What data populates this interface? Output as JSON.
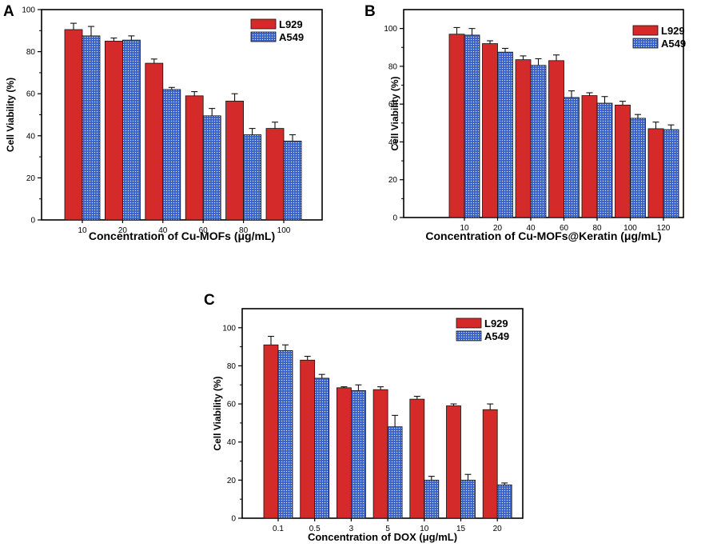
{
  "colors": {
    "l929": "#d42a2a",
    "a549": "#3a63c9",
    "a549_dot": "#e8eefc",
    "axis": "#000000",
    "background": "#ffffff"
  },
  "chart_data": [
    {
      "panel": "A",
      "type": "bar",
      "title": "",
      "xlabel": "Concentration of Cu-MOFs (μg/mL)",
      "ylabel": "Cell Viability (%)",
      "ylim": [
        0,
        100
      ],
      "yticks": [
        "0",
        "20",
        "40",
        "60",
        "80",
        "100"
      ],
      "categories": [
        "10",
        "20",
        "40",
        "60",
        "80",
        "100"
      ],
      "legend": {
        "position": "top-right",
        "entries": [
          "L929",
          "A549"
        ]
      },
      "series": [
        {
          "name": "L929",
          "values": [
            90.5,
            85.0,
            74.5,
            59.0,
            56.5,
            43.5
          ],
          "errors": [
            3.0,
            1.5,
            2.0,
            2.0,
            3.5,
            3.0
          ]
        },
        {
          "name": "A549",
          "values": [
            87.5,
            85.5,
            62.0,
            49.5,
            40.5,
            37.5
          ],
          "errors": [
            4.5,
            2.0,
            1.0,
            3.5,
            3.0,
            3.0
          ]
        }
      ]
    },
    {
      "panel": "B",
      "type": "bar",
      "title": "",
      "xlabel": "Concentration of Cu-MOFs@Keratin (μg/mL)",
      "ylabel": "Cell Viability (%)",
      "ylim": [
        0,
        110
      ],
      "yticks": [
        "0",
        "20",
        "40",
        "60",
        "80",
        "100"
      ],
      "categories": [
        "10",
        "20",
        "40",
        "60",
        "80",
        "100",
        "120"
      ],
      "legend": {
        "position": "top-right",
        "entries": [
          "L929",
          "A549"
        ]
      },
      "series": [
        {
          "name": "L929",
          "values": [
            97.0,
            92.0,
            83.5,
            83.0,
            64.5,
            59.5,
            47.0
          ],
          "errors": [
            3.5,
            1.5,
            2.0,
            3.0,
            1.5,
            2.0,
            3.5
          ]
        },
        {
          "name": "A549",
          "values": [
            96.5,
            87.5,
            80.5,
            63.5,
            60.5,
            52.5,
            46.5
          ],
          "errors": [
            3.5,
            2.0,
            3.5,
            3.5,
            3.5,
            2.0,
            2.5
          ]
        }
      ]
    },
    {
      "panel": "C",
      "type": "bar",
      "title": "",
      "xlabel": "Concentration of DOX (μg/mL)",
      "ylabel": "Cell Viability (%)",
      "ylim": [
        0,
        110
      ],
      "yticks": [
        "0",
        "20",
        "40",
        "60",
        "80",
        "100"
      ],
      "categories": [
        "0.1",
        "0.5",
        "3",
        "5",
        "10",
        "15",
        "20"
      ],
      "legend": {
        "position": "top-right",
        "entries": [
          "L929",
          "A549"
        ]
      },
      "series": [
        {
          "name": "L929",
          "values": [
            91.0,
            83.0,
            68.5,
            67.5,
            62.5,
            59.0,
            57.0
          ],
          "errors": [
            4.5,
            2.0,
            0.5,
            1.5,
            1.5,
            1.0,
            3.0
          ]
        },
        {
          "name": "A549",
          "values": [
            88.0,
            73.5,
            67.0,
            48.0,
            20.0,
            20.0,
            17.5
          ],
          "errors": [
            3.0,
            2.0,
            3.0,
            6.0,
            2.0,
            3.0,
            1.0
          ]
        }
      ]
    }
  ]
}
